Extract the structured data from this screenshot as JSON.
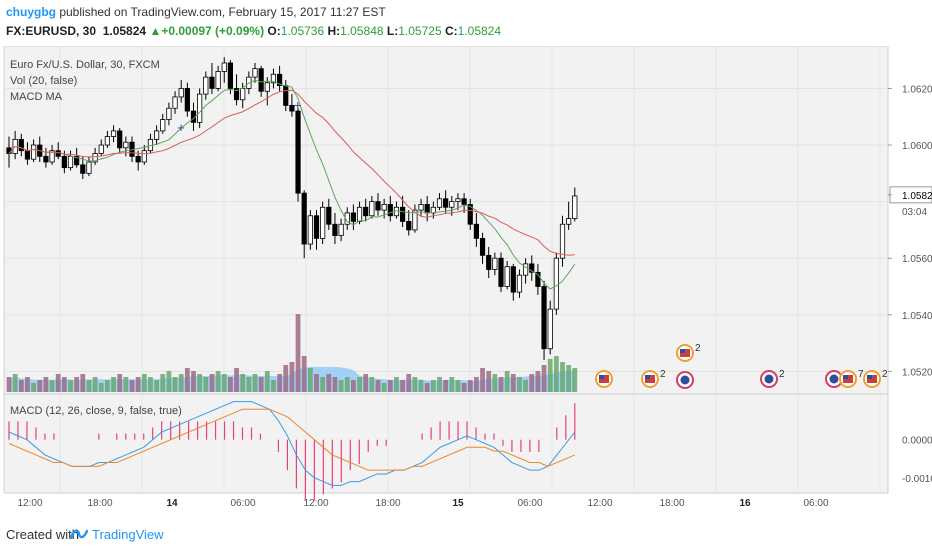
{
  "header": {
    "user": "chuygbg",
    "published": " published on TradingView.com, February 15, 2017 11:27 EST",
    "symbol": "FX:EURUSD, 30",
    "last": "1.05824",
    "change_arrow": "▲",
    "change": "+0.00097 (+0.09%)",
    "o_label": "O:",
    "o": "1.05736",
    "h_label": "H:",
    "h": "1.05848",
    "l_label": "L:",
    "l": "1.05725",
    "c_label": "C:",
    "c": "1.05824"
  },
  "legend": {
    "title": "Euro Fx/U.S. Dollar, 30, FXCM",
    "vol": "Vol (20, false)",
    "macd_ma": "MACD MA",
    "macd_pane": "MACD (12, 26, close, 9, false, true)"
  },
  "colors": {
    "up_candle": "#ffffff",
    "down_candle": "#000000",
    "ma_fast": "#5fa55a",
    "ma_slow": "#e05a5a",
    "macd_line": "#3d9be0",
    "signal_line": "#f0862b",
    "hist": "#e8407a",
    "vol_ma_area": "#8cc8f4"
  },
  "price_axis": {
    "ticks": [
      "1.06200",
      "1.06000",
      "1.05824",
      "1.05600",
      "1.05400",
      "1.05200"
    ],
    "countdown": "03:04"
  },
  "macd_axis": {
    "ticks": [
      "0.0000",
      "-0.0010"
    ]
  },
  "time_axis": {
    "ticks": [
      "12:00",
      "18:00",
      "14",
      "06:00",
      "12:00",
      "18:00",
      "15",
      "06:00",
      "12:00",
      "18:00",
      "16",
      "06:00"
    ]
  },
  "events": {
    "count_labels": [
      "2",
      "2",
      "2",
      "7",
      "2"
    ]
  },
  "footer": {
    "created": "Created with",
    "brand": "TradingView"
  },
  "chart_data": {
    "type": "candlestick",
    "title": "Euro Fx/U.S. Dollar, 30, FXCM",
    "ylim": [
      1.0512,
      1.0635
    ],
    "ohlc": [
      [
        1.0599,
        1.0603,
        1.0592,
        1.0597
      ],
      [
        1.0597,
        1.0605,
        1.0595,
        1.0602
      ],
      [
        1.0602,
        1.0604,
        1.0596,
        1.0598
      ],
      [
        1.0598,
        1.0601,
        1.0593,
        1.0595
      ],
      [
        1.0595,
        1.0602,
        1.0594,
        1.06
      ],
      [
        1.06,
        1.0603,
        1.0594,
        1.0596
      ],
      [
        1.0596,
        1.0599,
        1.0592,
        1.0594
      ],
      [
        1.0594,
        1.06,
        1.0593,
        1.0598
      ],
      [
        1.0598,
        1.0601,
        1.0595,
        1.0596
      ],
      [
        1.0596,
        1.0598,
        1.059,
        1.0592
      ],
      [
        1.0592,
        1.0598,
        1.0591,
        1.0596
      ],
      [
        1.0596,
        1.0599,
        1.0592,
        1.0593
      ],
      [
        1.0593,
        1.0596,
        1.0588,
        1.059
      ],
      [
        1.059,
        1.0596,
        1.0589,
        1.0594
      ],
      [
        1.0594,
        1.0599,
        1.0593,
        1.0597
      ],
      [
        1.0597,
        1.0602,
        1.0596,
        1.06
      ],
      [
        1.06,
        1.0605,
        1.0599,
        1.0603
      ],
      [
        1.0603,
        1.0607,
        1.0601,
        1.0605
      ],
      [
        1.0605,
        1.0606,
        1.0597,
        1.0599
      ],
      [
        1.0599,
        1.0603,
        1.0596,
        1.0601
      ],
      [
        1.0601,
        1.0603,
        1.0594,
        1.0596
      ],
      [
        1.0596,
        1.0598,
        1.0591,
        1.0594
      ],
      [
        1.0594,
        1.06,
        1.0593,
        1.0598
      ],
      [
        1.0598,
        1.0604,
        1.0597,
        1.0602
      ],
      [
        1.0602,
        1.0607,
        1.06,
        1.0605
      ],
      [
        1.0605,
        1.0611,
        1.0604,
        1.0609
      ],
      [
        1.0609,
        1.0615,
        1.0607,
        1.0613
      ],
      [
        1.0613,
        1.0619,
        1.0611,
        1.0617
      ],
      [
        1.0617,
        1.0623,
        1.0615,
        1.062
      ],
      [
        1.062,
        1.0622,
        1.061,
        1.0612
      ],
      [
        1.0612,
        1.0615,
        1.0605,
        1.0608
      ],
      [
        1.0608,
        1.062,
        1.0606,
        1.0618
      ],
      [
        1.0618,
        1.0626,
        1.0616,
        1.0624
      ],
      [
        1.0624,
        1.0629,
        1.0618,
        1.062
      ],
      [
        1.062,
        1.0628,
        1.0619,
        1.0626
      ],
      [
        1.0626,
        1.0631,
        1.0622,
        1.0629
      ],
      [
        1.0629,
        1.063,
        1.0618,
        1.062
      ],
      [
        1.062,
        1.0625,
        1.0614,
        1.0616
      ],
      [
        1.0616,
        1.0622,
        1.0613,
        1.062
      ],
      [
        1.062,
        1.0626,
        1.0618,
        1.0624
      ],
      [
        1.0624,
        1.0629,
        1.0622,
        1.0627
      ],
      [
        1.0627,
        1.0628,
        1.0617,
        1.0619
      ],
      [
        1.0619,
        1.0624,
        1.0614,
        1.0622
      ],
      [
        1.0622,
        1.0627,
        1.062,
        1.0625
      ],
      [
        1.0625,
        1.0628,
        1.0619,
        1.0621
      ],
      [
        1.0621,
        1.0623,
        1.0612,
        1.0614
      ],
      [
        1.0614,
        1.0618,
        1.061,
        1.0612
      ],
      [
        1.0612,
        1.0613,
        1.058,
        1.0583
      ],
      [
        1.0583,
        1.0584,
        1.056,
        1.0565
      ],
      [
        1.0565,
        1.0577,
        1.0563,
        1.0575
      ],
      [
        1.0575,
        1.0577,
        1.0563,
        1.0567
      ],
      [
        1.0567,
        1.058,
        1.0565,
        1.0578
      ],
      [
        1.0578,
        1.0581,
        1.057,
        1.0572
      ],
      [
        1.0572,
        1.0576,
        1.0565,
        1.0568
      ],
      [
        1.0568,
        1.0574,
        1.0566,
        1.0572
      ],
      [
        1.0572,
        1.0578,
        1.057,
        1.0576
      ],
      [
        1.0576,
        1.0579,
        1.057,
        1.0573
      ],
      [
        1.0573,
        1.058,
        1.0572,
        1.0578
      ],
      [
        1.0578,
        1.0581,
        1.0573,
        1.0575
      ],
      [
        1.0575,
        1.0582,
        1.0574,
        1.058
      ],
      [
        1.058,
        1.0583,
        1.0575,
        1.0577
      ],
      [
        1.0577,
        1.0581,
        1.0574,
        1.0579
      ],
      [
        1.0579,
        1.0582,
        1.0573,
        1.0575
      ],
      [
        1.0575,
        1.058,
        1.0574,
        1.0578
      ],
      [
        1.0578,
        1.0582,
        1.0571,
        1.0573
      ],
      [
        1.0573,
        1.0577,
        1.0568,
        1.057
      ],
      [
        1.057,
        1.0579,
        1.0569,
        1.0577
      ],
      [
        1.0577,
        1.0581,
        1.0575,
        1.0579
      ],
      [
        1.0579,
        1.0582,
        1.0573,
        1.0576
      ],
      [
        1.0576,
        1.058,
        1.0574,
        1.0578
      ],
      [
        1.0578,
        1.0583,
        1.0577,
        1.0581
      ],
      [
        1.0581,
        1.0584,
        1.0576,
        1.0578
      ],
      [
        1.0578,
        1.0582,
        1.0575,
        1.058
      ],
      [
        1.058,
        1.0583,
        1.0577,
        1.0581
      ],
      [
        1.0581,
        1.0583,
        1.0576,
        1.0579
      ],
      [
        1.0579,
        1.0581,
        1.057,
        1.0572
      ],
      [
        1.0572,
        1.0576,
        1.0564,
        1.0567
      ],
      [
        1.0567,
        1.0569,
        1.0558,
        1.0561
      ],
      [
        1.0561,
        1.0564,
        1.0553,
        1.0556
      ],
      [
        1.0556,
        1.0562,
        1.0554,
        1.056
      ],
      [
        1.056,
        1.0562,
        1.0548,
        1.055
      ],
      [
        1.055,
        1.0559,
        1.0549,
        1.0557
      ],
      [
        1.0557,
        1.0558,
        1.0545,
        1.0548
      ],
      [
        1.0548,
        1.0556,
        1.0546,
        1.0554
      ],
      [
        1.0554,
        1.056,
        1.0551,
        1.0558
      ],
      [
        1.0558,
        1.0561,
        1.0552,
        1.0555
      ],
      [
        1.0555,
        1.0558,
        1.0547,
        1.055
      ],
      [
        1.055,
        1.0552,
        1.0524,
        1.0528
      ],
      [
        1.0528,
        1.0545,
        1.0526,
        1.0542
      ],
      [
        1.0542,
        1.0562,
        1.054,
        1.056
      ],
      [
        1.056,
        1.0575,
        1.0557,
        1.0572
      ],
      [
        1.0572,
        1.058,
        1.057,
        1.0574
      ],
      [
        1.0574,
        1.0585,
        1.0573,
        1.0582
      ]
    ],
    "volume": [
      5,
      6,
      4,
      5,
      3,
      4,
      5,
      4,
      6,
      5,
      4,
      5,
      6,
      4,
      5,
      3,
      4,
      5,
      6,
      5,
      4,
      5,
      6,
      5,
      4,
      6,
      7,
      5,
      6,
      8,
      7,
      6,
      5,
      6,
      7,
      6,
      5,
      8,
      6,
      5,
      6,
      5,
      7,
      4,
      6,
      9,
      10,
      26,
      12,
      8,
      6,
      5,
      6,
      5,
      4,
      5,
      4,
      5,
      6,
      5,
      4,
      3,
      4,
      5,
      4,
      6,
      5,
      4,
      3,
      4,
      5,
      4,
      5,
      4,
      3,
      4,
      5,
      8,
      7,
      6,
      5,
      7,
      6,
      5,
      4,
      6,
      7,
      9,
      11,
      12,
      10,
      9,
      8
    ],
    "macd": [
      0.0002,
      0.0001,
      0.0,
      -0.0002,
      -0.0004,
      -0.0005,
      -0.0006,
      -0.0007,
      -0.0007,
      -0.0007,
      -0.0006,
      -0.0006,
      -0.0005,
      -0.0004,
      -0.0003,
      -0.0002,
      0.0,
      0.0002,
      0.0003,
      0.0004,
      0.0005,
      0.0006,
      0.0007,
      0.0008,
      0.0009,
      0.001,
      0.001,
      0.001,
      0.0009,
      0.0008,
      0.0005,
      0.0001,
      -0.0004,
      -0.0008,
      -0.001,
      -0.0011,
      -0.0012,
      -0.0012,
      -0.0011,
      -0.0011,
      -0.001,
      -0.0009,
      -0.0009,
      -0.0008,
      -0.0008,
      -0.0007,
      -0.0006,
      -0.0004,
      -0.0002,
      -0.0001,
      0.0,
      0.0001,
      0.0,
      -0.0001,
      -0.0002,
      -0.0004,
      -0.0006,
      -0.0007,
      -0.0008,
      -0.0008,
      -0.0007,
      -0.0004,
      -0.0001,
      0.0002
    ],
    "signal": [
      -0.0001,
      -0.0002,
      -0.0003,
      -0.0004,
      -0.0005,
      -0.0006,
      -0.0006,
      -0.0007,
      -0.0007,
      -0.0007,
      -0.0007,
      -0.0006,
      -0.0006,
      -0.0005,
      -0.0004,
      -0.0003,
      -0.0002,
      -0.0001,
      0.0,
      0.0001,
      0.0002,
      0.0003,
      0.0004,
      0.0005,
      0.0006,
      0.0007,
      0.0008,
      0.0008,
      0.0008,
      0.0008,
      0.0007,
      0.0006,
      0.0004,
      0.0002,
      0.0,
      -0.0002,
      -0.0004,
      -0.0005,
      -0.0006,
      -0.0007,
      -0.0008,
      -0.0008,
      -0.0008,
      -0.0008,
      -0.0008,
      -0.0007,
      -0.0007,
      -0.0006,
      -0.0005,
      -0.0004,
      -0.0003,
      -0.0002,
      -0.0002,
      -0.0002,
      -0.0003,
      -0.0003,
      -0.0004,
      -0.0005,
      -0.0006,
      -0.0006,
      -0.0007,
      -0.0006,
      -0.0005,
      -0.0004
    ],
    "macd_ylim": [
      -0.0014,
      0.0012
    ]
  }
}
